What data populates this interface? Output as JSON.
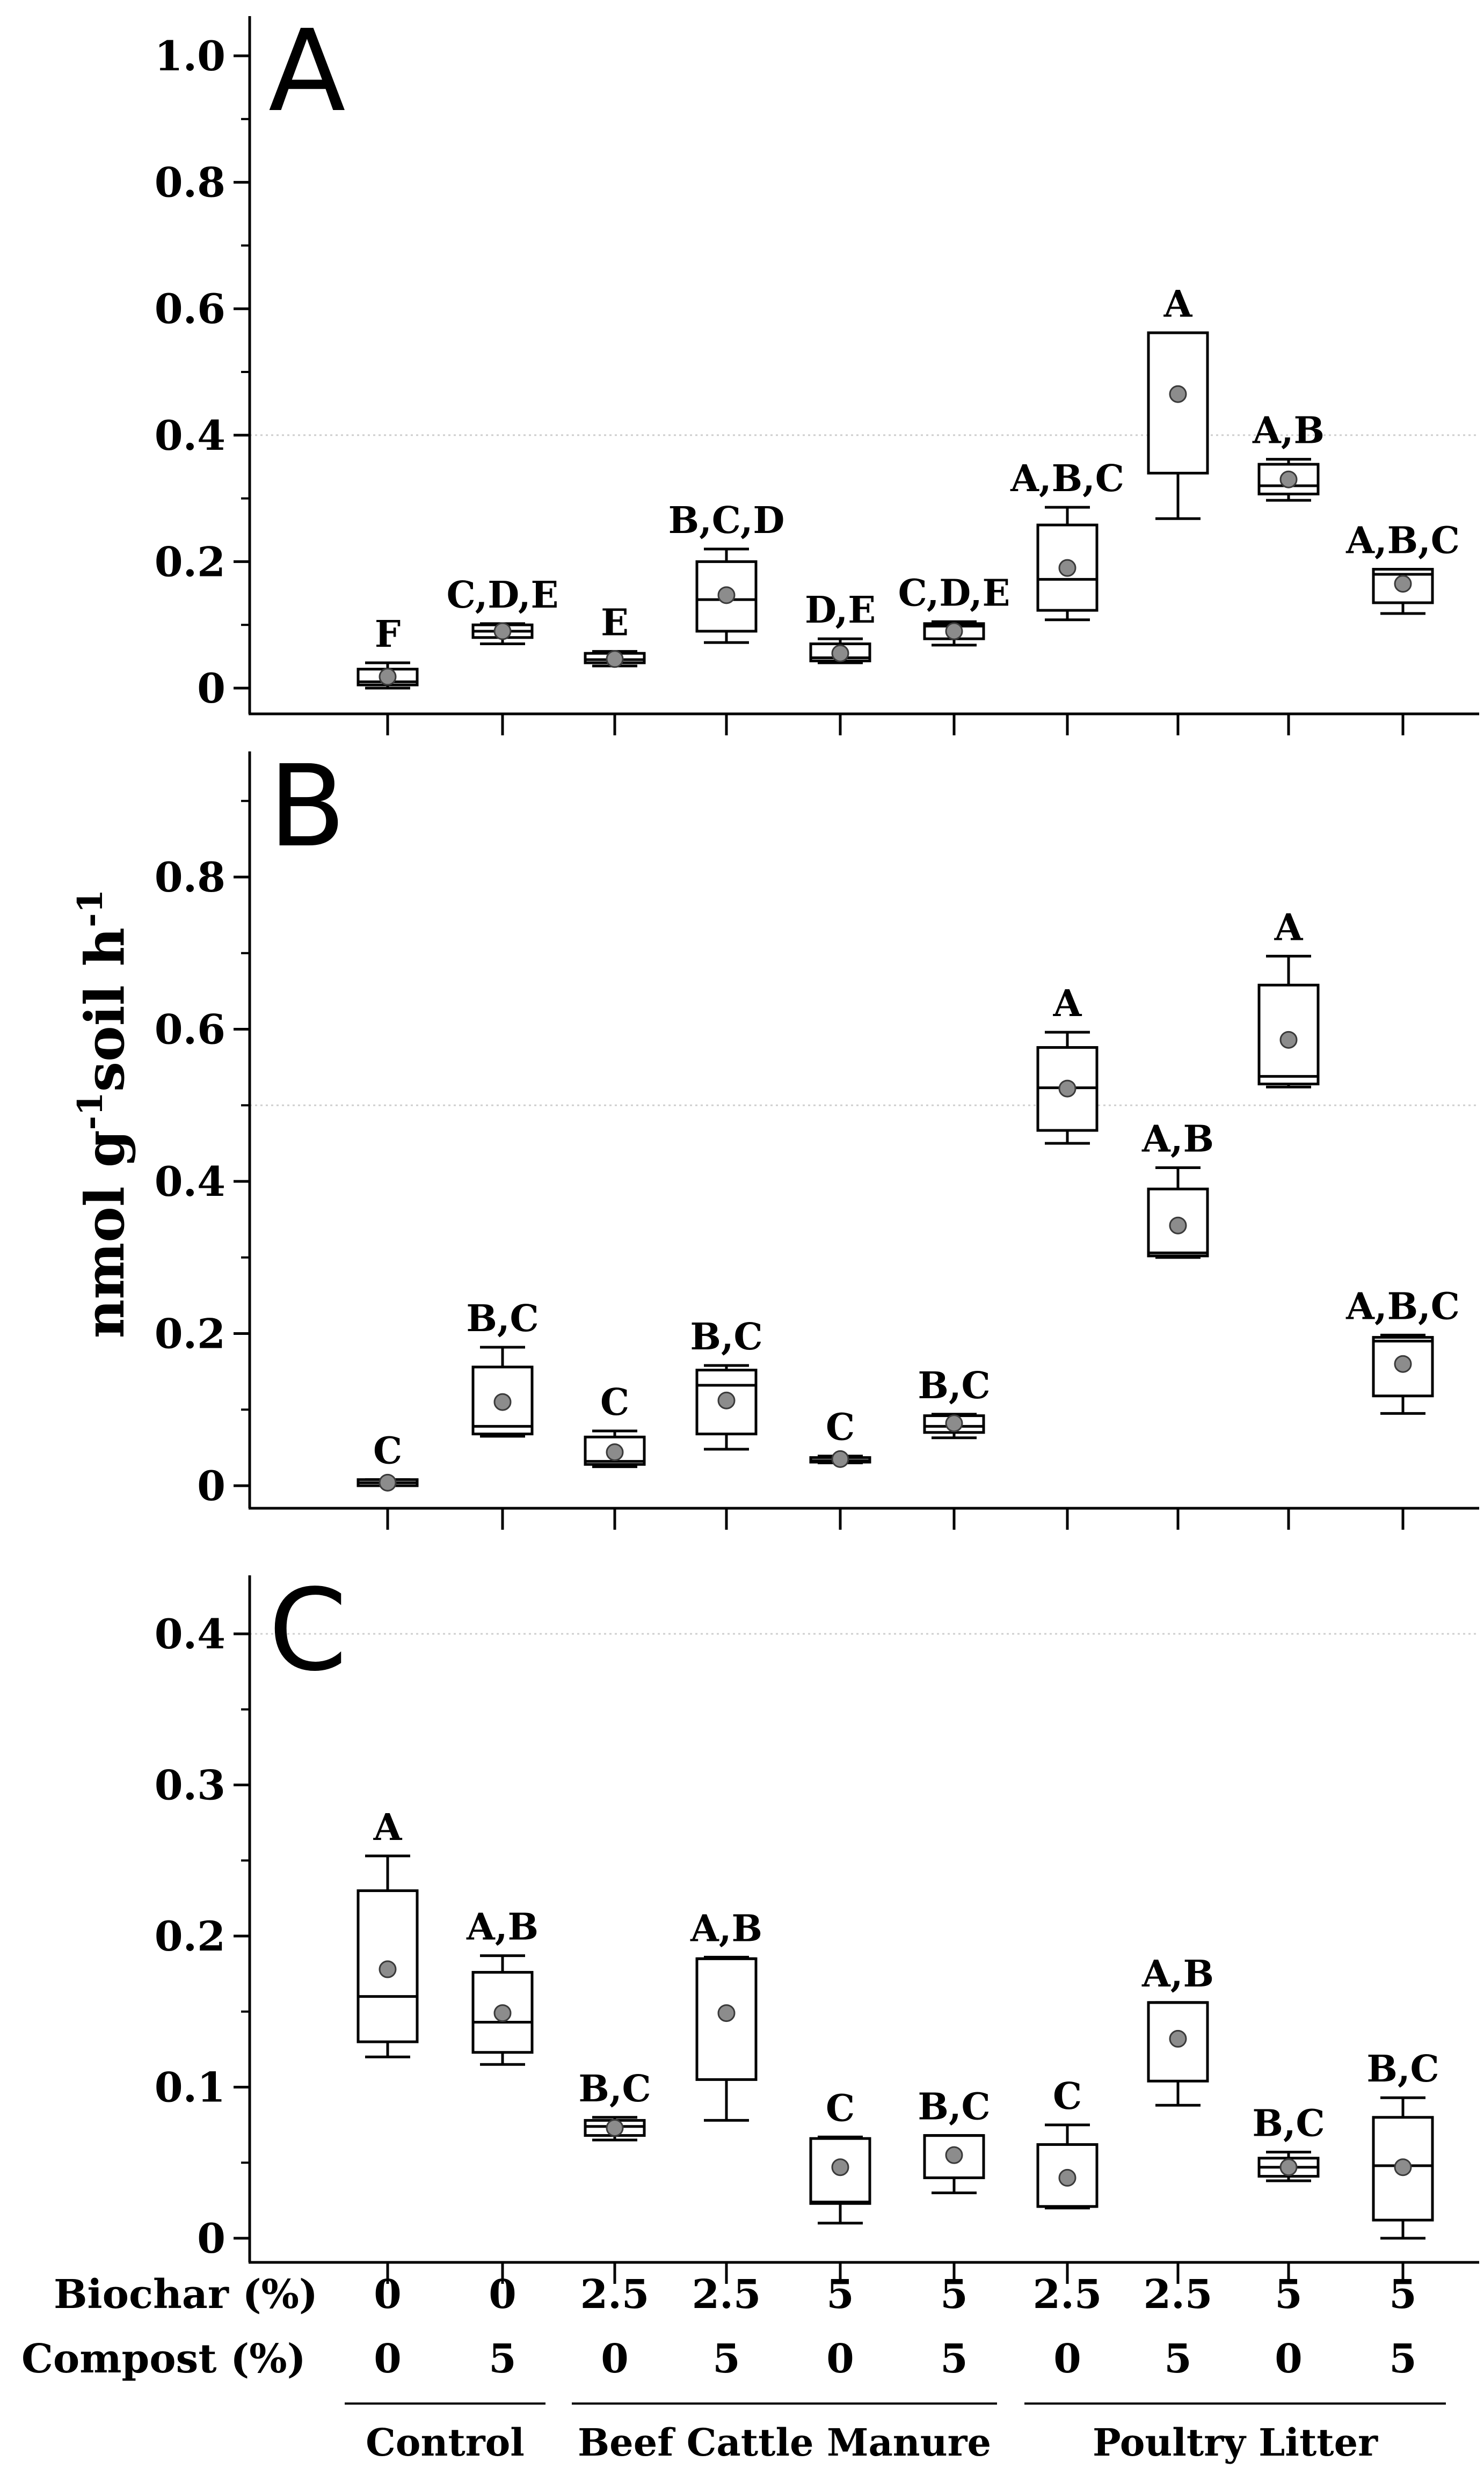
{
  "figure": {
    "ylabel_main": "nmol g",
    "ylabel_sup1": "-1",
    "ylabel_mid": "soil h",
    "ylabel_sup2": "-1"
  },
  "x_axis": {
    "biochar_label": "Biochar (%)",
    "compost_label": "Compost (%)",
    "biochar_values": [
      "0",
      "0",
      "2.5",
      "2.5",
      "5",
      "5",
      "2.5",
      "2.5",
      "5",
      "5"
    ],
    "compost_values": [
      "0",
      "5",
      "0",
      "5",
      "0",
      "5",
      "0",
      "5",
      "0",
      "5"
    ],
    "groups": [
      {
        "label": "Control",
        "from": 0,
        "to": 1
      },
      {
        "label": "Beef Cattle Manure",
        "from": 2,
        "to": 5
      },
      {
        "label": "Poultry Litter",
        "from": 6,
        "to": 9
      }
    ]
  },
  "chart_data": [
    {
      "type": "box",
      "panel": "A",
      "ylim": [
        0,
        1.05
      ],
      "yticks": [
        0,
        0.2,
        0.4,
        0.6,
        0.8,
        1.0
      ],
      "ytick_labels": [
        "0",
        "0.2",
        "0.4",
        "0.6",
        "0.8",
        "1.0"
      ],
      "gridline": 0.4,
      "boxes": [
        {
          "min": 0.0,
          "q1": 0.005,
          "median": 0.01,
          "q3": 0.03,
          "max": 0.04,
          "mean": 0.018,
          "label": "F"
        },
        {
          "min": 0.07,
          "q1": 0.08,
          "median": 0.09,
          "q3": 0.1,
          "max": 0.102,
          "mean": 0.09,
          "label": "C,D,E"
        },
        {
          "min": 0.035,
          "q1": 0.04,
          "median": 0.045,
          "q3": 0.055,
          "max": 0.058,
          "mean": 0.046,
          "label": "E"
        },
        {
          "min": 0.072,
          "q1": 0.09,
          "median": 0.14,
          "q3": 0.2,
          "max": 0.22,
          "mean": 0.147,
          "label": "B,C,D"
        },
        {
          "min": 0.04,
          "q1": 0.043,
          "median": 0.048,
          "q3": 0.07,
          "max": 0.078,
          "mean": 0.055,
          "label": "D,E"
        },
        {
          "min": 0.068,
          "q1": 0.078,
          "median": 0.098,
          "q3": 0.102,
          "max": 0.105,
          "mean": 0.09,
          "label": "C,D,E"
        },
        {
          "min": 0.108,
          "q1": 0.123,
          "median": 0.172,
          "q3": 0.258,
          "max": 0.286,
          "mean": 0.19,
          "label": "A,B,C"
        },
        {
          "min": 0.268,
          "q1": 0.34,
          "median": 0.562,
          "q3": 0.562,
          "max": 0.562,
          "mean": 0.465,
          "label": "A"
        },
        {
          "min": 0.297,
          "q1": 0.307,
          "median": 0.32,
          "q3": 0.354,
          "max": 0.362,
          "mean": 0.33,
          "label": "A,B"
        },
        {
          "min": 0.118,
          "q1": 0.135,
          "median": 0.18,
          "q3": 0.188,
          "max": 0.188,
          "mean": 0.165,
          "label": "A,B,C"
        }
      ]
    },
    {
      "type": "box",
      "panel": "B",
      "ylim": [
        -0.02,
        0.95
      ],
      "yticks": [
        0,
        0.2,
        0.4,
        0.6,
        0.8
      ],
      "ytick_labels": [
        "0",
        "0.2",
        "0.4",
        "0.6",
        "0.8"
      ],
      "gridline": 0.5,
      "boxes": [
        {
          "min": 0.0,
          "q1": 0.0,
          "median": 0.004,
          "q3": 0.008,
          "max": 0.008,
          "mean": 0.004,
          "label": "C"
        },
        {
          "min": 0.065,
          "q1": 0.068,
          "median": 0.078,
          "q3": 0.156,
          "max": 0.182,
          "mean": 0.11,
          "label": "B,C"
        },
        {
          "min": 0.025,
          "q1": 0.028,
          "median": 0.032,
          "q3": 0.064,
          "max": 0.072,
          "mean": 0.044,
          "label": "C"
        },
        {
          "min": 0.048,
          "q1": 0.068,
          "median": 0.132,
          "q3": 0.152,
          "max": 0.158,
          "mean": 0.112,
          "label": "B,C"
        },
        {
          "min": 0.03,
          "q1": 0.031,
          "median": 0.033,
          "q3": 0.037,
          "max": 0.039,
          "mean": 0.035,
          "label": "C"
        },
        {
          "min": 0.063,
          "q1": 0.07,
          "median": 0.078,
          "q3": 0.092,
          "max": 0.094,
          "mean": 0.082,
          "label": "B,C"
        },
        {
          "min": 0.45,
          "q1": 0.467,
          "median": 0.523,
          "q3": 0.576,
          "max": 0.596,
          "mean": 0.522,
          "label": "A"
        },
        {
          "min": 0.3,
          "q1": 0.302,
          "median": 0.306,
          "q3": 0.39,
          "max": 0.418,
          "mean": 0.342,
          "label": "A,B"
        },
        {
          "min": 0.524,
          "q1": 0.528,
          "median": 0.538,
          "q3": 0.658,
          "max": 0.696,
          "mean": 0.586,
          "label": "A"
        },
        {
          "min": 0.095,
          "q1": 0.118,
          "median": 0.19,
          "q3": 0.195,
          "max": 0.198,
          "mean": 0.16,
          "label": "A,B,C"
        }
      ]
    },
    {
      "type": "box",
      "panel": "C",
      "ylim": [
        -0.02,
        0.425
      ],
      "yticks": [
        0,
        0.1,
        0.2,
        0.3,
        0.4
      ],
      "ytick_labels": [
        "0",
        "0.1",
        "0.2",
        "0.3",
        "0.4"
      ],
      "gridline": 0.4,
      "boxes": [
        {
          "min": 0.12,
          "q1": 0.13,
          "median": 0.16,
          "q3": 0.23,
          "max": 0.253,
          "mean": 0.178,
          "label": "A"
        },
        {
          "min": 0.115,
          "q1": 0.123,
          "median": 0.143,
          "q3": 0.176,
          "max": 0.187,
          "mean": 0.149,
          "label": "A,B"
        },
        {
          "min": 0.065,
          "q1": 0.068,
          "median": 0.074,
          "q3": 0.078,
          "max": 0.08,
          "mean": 0.073,
          "label": "B,C"
        },
        {
          "min": 0.078,
          "q1": 0.105,
          "median": 0.185,
          "q3": 0.185,
          "max": 0.186,
          "mean": 0.149,
          "label": "A,B"
        },
        {
          "min": 0.01,
          "q1": 0.023,
          "median": 0.024,
          "q3": 0.066,
          "max": 0.067,
          "mean": 0.047,
          "label": "C"
        },
        {
          "min": 0.03,
          "q1": 0.04,
          "median": 0.068,
          "q3": 0.068,
          "max": 0.068,
          "mean": 0.055,
          "label": "B,C"
        },
        {
          "min": 0.02,
          "q1": 0.021,
          "median": 0.021,
          "q3": 0.062,
          "max": 0.075,
          "mean": 0.04,
          "label": "C"
        },
        {
          "min": 0.088,
          "q1": 0.104,
          "median": 0.156,
          "q3": 0.156,
          "max": 0.156,
          "mean": 0.132,
          "label": "A,B"
        },
        {
          "min": 0.038,
          "q1": 0.041,
          "median": 0.047,
          "q3": 0.053,
          "max": 0.057,
          "mean": 0.047,
          "label": "B,C"
        },
        {
          "min": 0.0,
          "q1": 0.012,
          "median": 0.048,
          "q3": 0.08,
          "max": 0.093,
          "mean": 0.047,
          "label": "B,C"
        }
      ]
    }
  ]
}
